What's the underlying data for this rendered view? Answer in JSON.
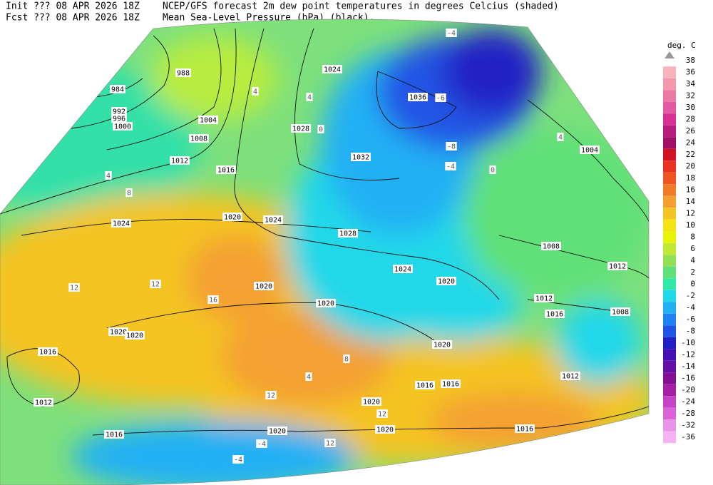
{
  "header": {
    "init": "Init  ??? 08 APR 2026 18Z",
    "fcst": "Fcst ??? 08 APR 2026 18Z",
    "title": "NCEP/GFS forecast 2m dew point temperatures in degrees Celcius (shaded)",
    "subtitle": "Mean Sea-Level Pressure (hPa) (black)."
  },
  "legend": {
    "unit": "deg. C",
    "labels": [
      38,
      36,
      34,
      32,
      30,
      28,
      26,
      24,
      22,
      20,
      18,
      16,
      14,
      12,
      10,
      8,
      6,
      4,
      2,
      0,
      -2,
      -4,
      -6,
      -8,
      -10,
      -12,
      -14,
      -16,
      -20,
      -24,
      -28,
      -32,
      -36
    ],
    "colors": [
      "#f8b4bc",
      "#f498ac",
      "#ec78a4",
      "#e458a4",
      "#d83094",
      "#b81c7c",
      "#a01064",
      "#d01424",
      "#e83420",
      "#f05420",
      "#f07c28",
      "#f4a030",
      "#f4c424",
      "#f4e414",
      "#e8f404",
      "#c0e834",
      "#94e054",
      "#60e078",
      "#30e8a8",
      "#20d8e8",
      "#20b0f4",
      "#2084f0",
      "#2054e4",
      "#2020c4",
      "#4410b4",
      "#6410a4",
      "#841094",
      "#a420a4",
      "#c444c4",
      "#d864d8",
      "#e894e8",
      "#f4b4f4"
    ]
  },
  "map": {
    "isobar_labels": [
      "988",
      "984",
      "992",
      "996",
      "1000",
      "1004",
      "1008",
      "1012",
      "1016",
      "1020",
      "1024",
      "1024",
      "1028",
      "1024",
      "1020",
      "1020",
      "1020",
      "1020",
      "1020",
      "1016",
      "1012",
      "1016",
      "1020",
      "1020",
      "1016",
      "1020",
      "1016",
      "1016",
      "1020",
      "1012",
      "1008",
      "1016",
      "1012",
      "1012",
      "1008",
      "1004",
      "1028",
      "1032",
      "1036",
      "1024"
    ],
    "dewpoint_labels": [
      "-4",
      "-6",
      "-8",
      "-4",
      "0",
      "4",
      "12",
      "12",
      "16",
      "12",
      "12",
      "8",
      "4",
      "-4",
      "-4",
      "12",
      "4",
      "4",
      "0",
      "8",
      "4"
    ]
  }
}
